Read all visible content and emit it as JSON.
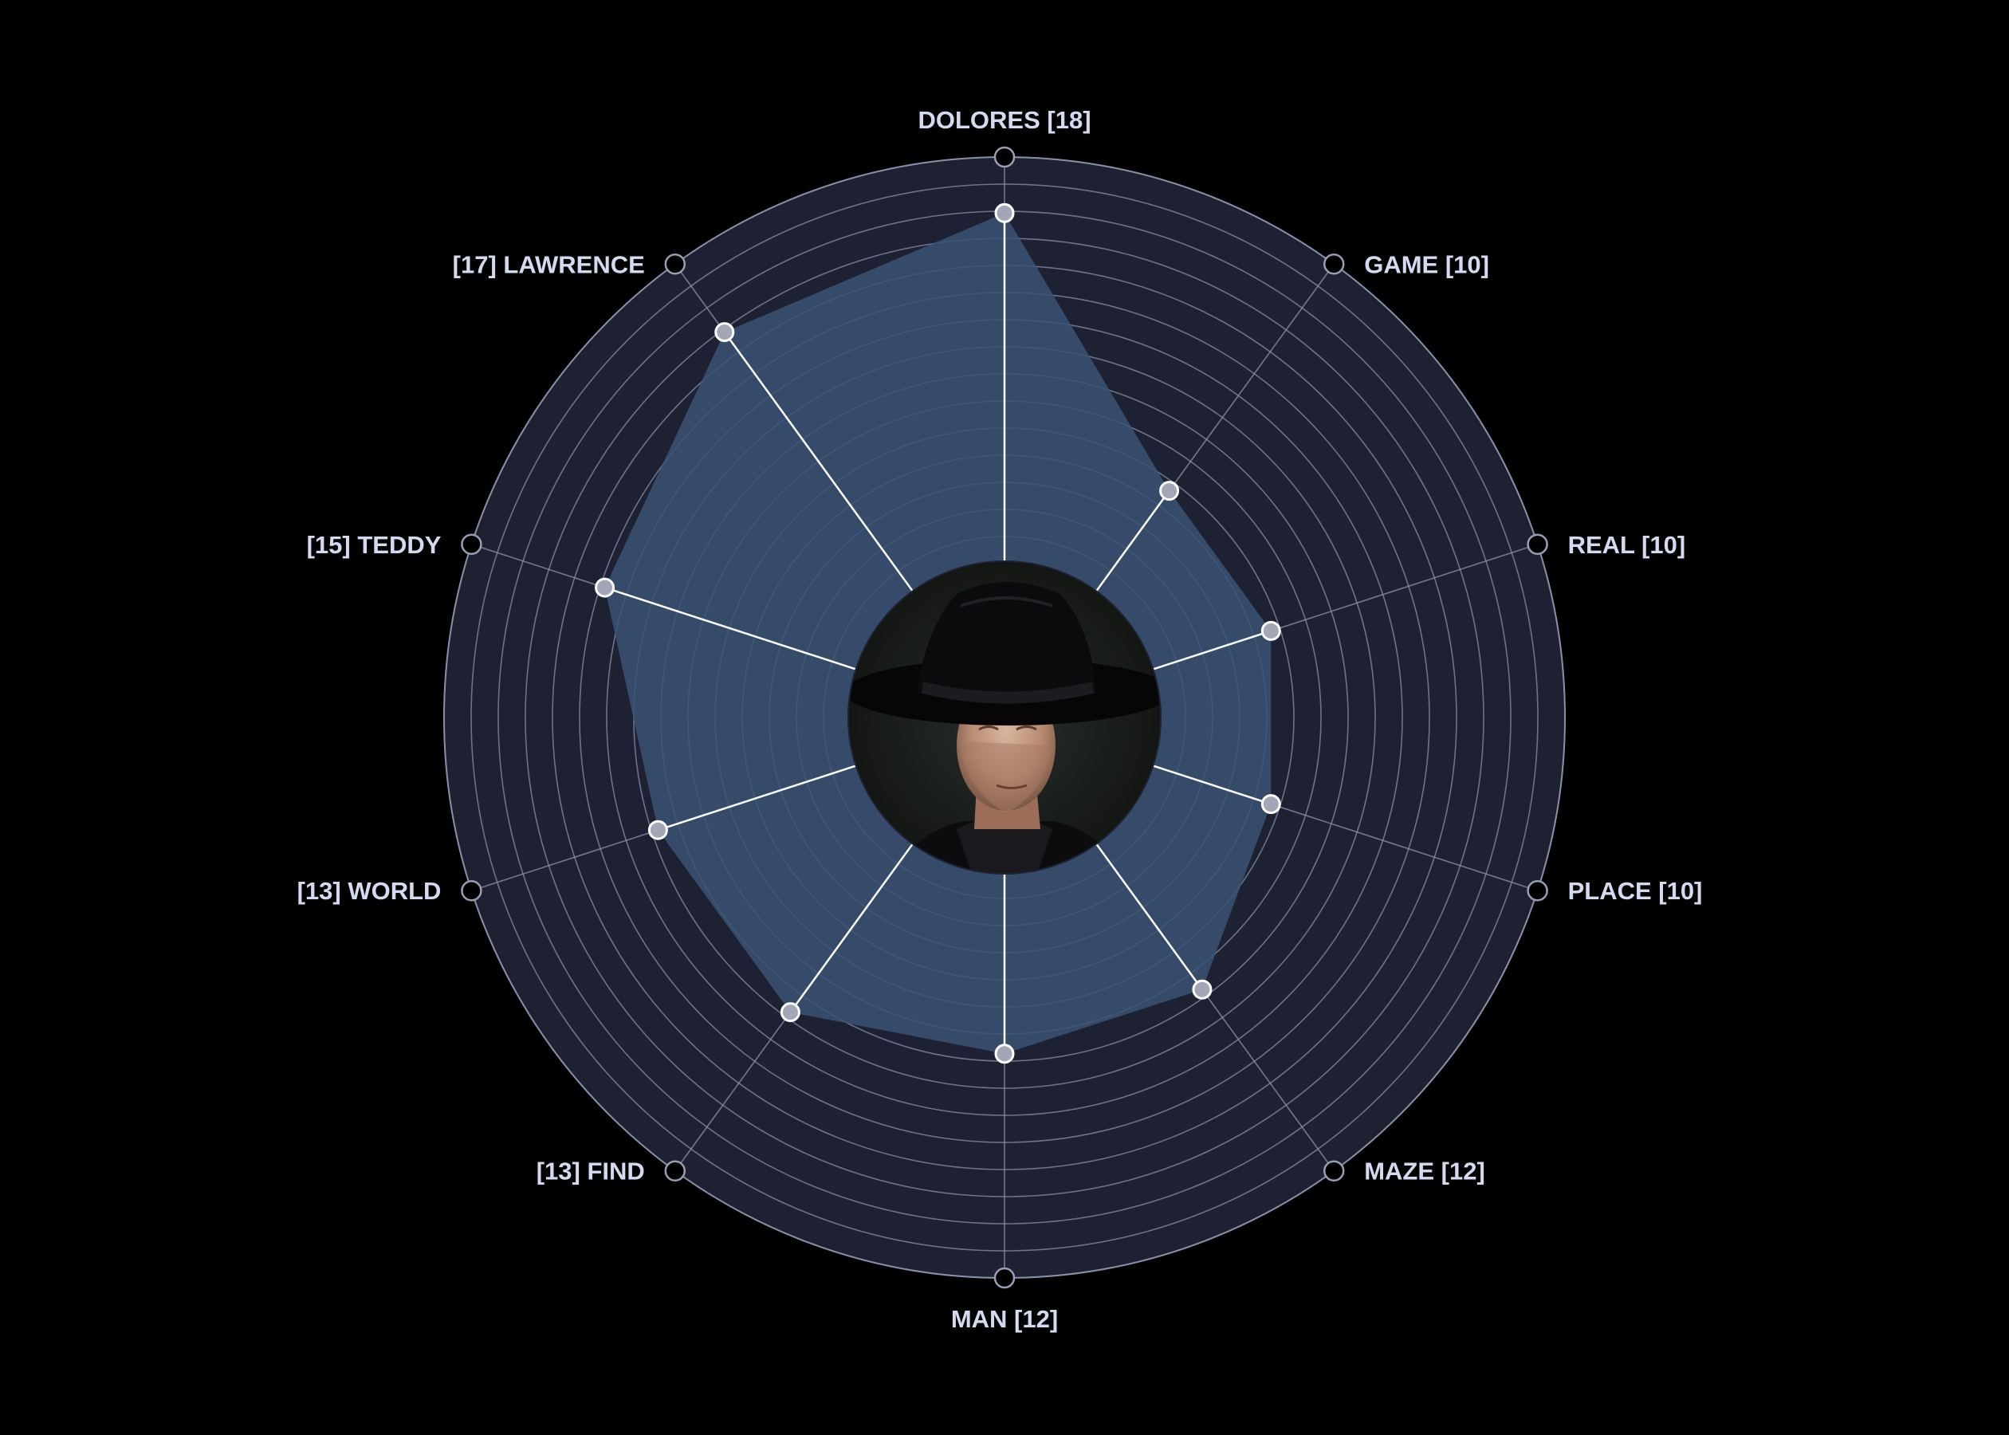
{
  "chart_data": {
    "type": "radar",
    "center_image": "man-in-black-portrait",
    "categories": [
      {
        "name": "DOLORES",
        "value": 18,
        "label": "DOLORES [18]"
      },
      {
        "name": "GAME",
        "value": 10,
        "label": "GAME [10]"
      },
      {
        "name": "REAL",
        "value": 10,
        "label": "REAL [10]"
      },
      {
        "name": "PLACE",
        "value": 10,
        "label": "PLACE [10]"
      },
      {
        "name": "MAZE",
        "value": 12,
        "label": "MAZE [12]"
      },
      {
        "name": "MAN",
        "value": 12,
        "label": "MAN [12]"
      },
      {
        "name": "FIND",
        "value": 13,
        "label": "[13] FIND"
      },
      {
        "name": "WORLD",
        "value": 13,
        "label": "[13] WORLD"
      },
      {
        "name": "TEDDY",
        "value": 15,
        "label": "[15] TEDDY"
      },
      {
        "name": "LAWRENCE",
        "value": 17,
        "label": "[17] LAWRENCE"
      }
    ],
    "scale_min": 0,
    "scale_max": 20,
    "rings": 20,
    "grid": true
  },
  "colors": {
    "background": "#000000",
    "disc": "#1d2131",
    "grid_ring": "#8b8fa8",
    "grid_spoke": "#8b8fa8",
    "fill": "#3a5273",
    "value_spoke": "#ffffff",
    "point_fill": "#a3a6b7",
    "point_stroke": "#ffffff",
    "label": "#d6daf0",
    "outer_marker_stroke": "#9a9eb2"
  }
}
